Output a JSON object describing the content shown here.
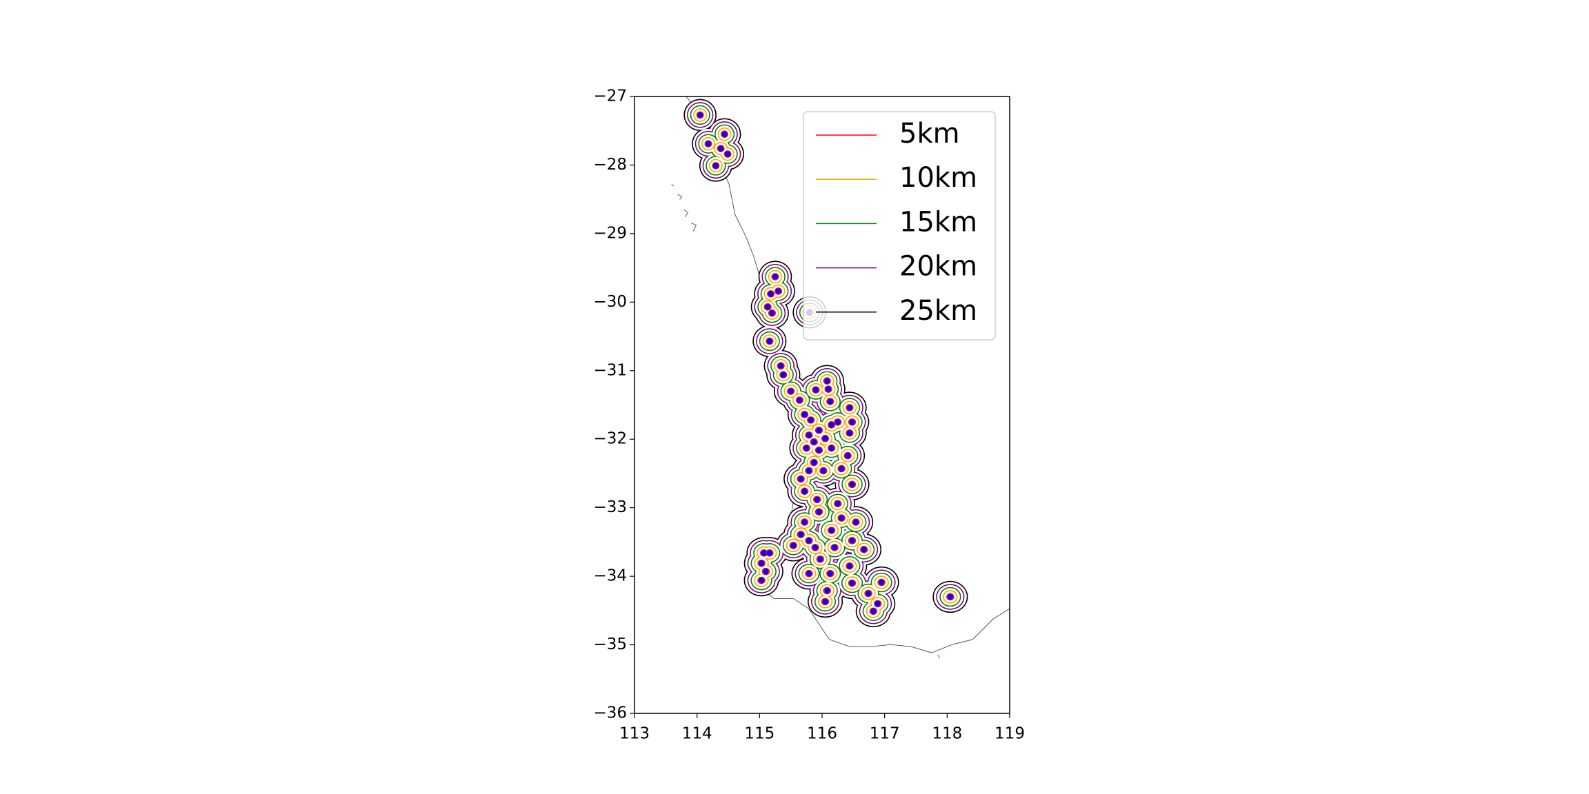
{
  "chart_data": {
    "type": "buffer_map",
    "xlim": [
      113,
      119
    ],
    "xticks": [
      113,
      114,
      115,
      116,
      117,
      118,
      119
    ],
    "ylim": [
      -36,
      -27
    ],
    "yticks": [
      {
        "value": -27,
        "label": "−27"
      },
      {
        "value": -28,
        "label": "−28"
      },
      {
        "value": -29,
        "label": "−29"
      },
      {
        "value": -30,
        "label": "−30"
      },
      {
        "value": -31,
        "label": "−31"
      },
      {
        "value": -32,
        "label": "−32"
      },
      {
        "value": -33,
        "label": "−33"
      },
      {
        "value": -34,
        "label": "−34"
      },
      {
        "value": -35,
        "label": "−35"
      },
      {
        "value": -36,
        "label": "−36"
      }
    ],
    "point_color": "#0000ff",
    "x": [
      114.05,
      114.18,
      114.44,
      114.38,
      114.49,
      114.3,
      115.25,
      115.18,
      115.3,
      115.13,
      115.2,
      115.8,
      115.16,
      115.34,
      115.38,
      115.5,
      115.64,
      115.9,
      116.08,
      116.1,
      116.13,
      115.72,
      115.82,
      115.95,
      115.79,
      115.87,
      115.75,
      115.95,
      116.05,
      116.15,
      116.25,
      116.44,
      116.48,
      116.44,
      116.15,
      116.31,
      116.41,
      116.02,
      115.87,
      115.79,
      115.66,
      115.72,
      116.48,
      115.92,
      115.95,
      116.25,
      116.31,
      116.15,
      116.54,
      116.48,
      116.67,
      116.2,
      115.97,
      115.72,
      115.66,
      115.79,
      115.89,
      115.54,
      115.07,
      115.16,
      115.03,
      115.1,
      115.03,
      115.79,
      116.13,
      116.44,
      116.48,
      116.95,
      116.74,
      116.08,
      116.05,
      116.89,
      116.82,
      118.05
    ],
    "y": [
      -27.27,
      -27.69,
      -27.55,
      -27.76,
      -27.84,
      -28.01,
      -29.63,
      -29.88,
      -29.84,
      -30.07,
      -30.16,
      -30.15,
      -30.57,
      -30.93,
      -31.06,
      -31.3,
      -31.43,
      -31.28,
      -31.15,
      -31.27,
      -31.45,
      -31.64,
      -31.72,
      -31.87,
      -31.94,
      -32.04,
      -32.13,
      -32.16,
      -31.99,
      -31.79,
      -31.75,
      -31.54,
      -31.75,
      -31.91,
      -32.13,
      -32.43,
      -32.24,
      -32.46,
      -32.34,
      -32.46,
      -32.58,
      -32.76,
      -32.66,
      -32.88,
      -33.06,
      -32.94,
      -33.15,
      -33.33,
      -33.21,
      -33.48,
      -33.61,
      -33.58,
      -33.75,
      -33.21,
      -33.39,
      -33.48,
      -33.58,
      -33.55,
      -33.66,
      -33.66,
      -33.81,
      -33.93,
      -34.06,
      -33.96,
      -33.96,
      -33.85,
      -34.1,
      -34.09,
      -34.25,
      -34.21,
      -34.37,
      -34.4,
      -34.51,
      -34.3
    ],
    "series": [
      {
        "name": "5km",
        "color": "#ff0000",
        "radius": 5
      },
      {
        "name": "10km",
        "color": "#ffa500",
        "radius": 10
      },
      {
        "name": "15km",
        "color": "#008000",
        "radius": 15
      },
      {
        "name": "20km",
        "color": "#800080",
        "radius": 20
      },
      {
        "name": "25km",
        "color": "#000000",
        "radius": 25
      }
    ],
    "legend": "upper right"
  }
}
